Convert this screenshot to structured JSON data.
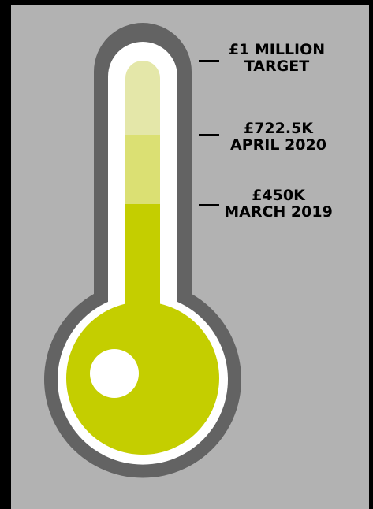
{
  "colors": {
    "background": "#b2b2b2",
    "frame": "#000000",
    "outline": "#636363",
    "tube": "#ffffff",
    "fill_level_1": "#c4ce00",
    "fill_level_2": "#dbe073",
    "fill_level_3": "#e4e7a9",
    "label_text": "#000000"
  },
  "markers": [
    {
      "amount": "£1 MILLION",
      "caption": "TARGET"
    },
    {
      "amount": "£722.5K",
      "caption": "APRIL 2020"
    },
    {
      "amount": "£450K",
      "caption": "MARCH 2019"
    }
  ],
  "progress": {
    "target": 1000000,
    "raised_2020": 722500,
    "raised_2019": 450000
  }
}
